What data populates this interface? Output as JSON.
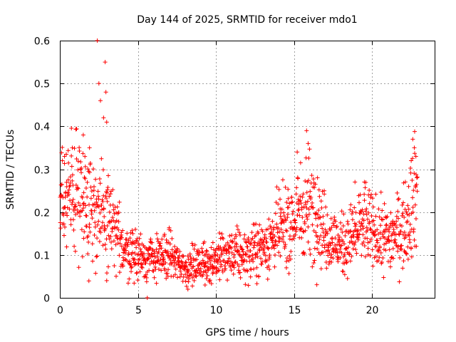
{
  "chart_data": {
    "type": "scatter",
    "title": "Day 144 of 2025, SRMTID for receiver mdo1",
    "xlabel": "GPS time / hours",
    "ylabel": "SRMTID / TECUs",
    "xlim": [
      0,
      24
    ],
    "ylim": [
      0,
      0.6
    ],
    "grid": true,
    "marker": "plus",
    "color": "#ff0000",
    "x_ticks": [
      0,
      5,
      10,
      15,
      20
    ],
    "x_tick_labels": [
      "0",
      "5",
      "10",
      "15",
      "20"
    ],
    "y_ticks": [
      0,
      0.1,
      0.2,
      0.3,
      0.4,
      0.5,
      0.6
    ],
    "y_tick_labels": [
      "0",
      "0.1",
      "0.2",
      "0.3",
      "0.4",
      "0.5",
      "0.6"
    ],
    "trend": [
      {
        "x": 0.0,
        "y": 0.21
      },
      {
        "x": 0.5,
        "y": 0.24
      },
      {
        "x": 1.0,
        "y": 0.25
      },
      {
        "x": 1.5,
        "y": 0.25
      },
      {
        "x": 2.0,
        "y": 0.22
      },
      {
        "x": 2.5,
        "y": 0.18
      },
      {
        "x": 3.0,
        "y": 0.2
      },
      {
        "x": 3.5,
        "y": 0.15
      },
      {
        "x": 4.0,
        "y": 0.12
      },
      {
        "x": 5.0,
        "y": 0.1
      },
      {
        "x": 6.0,
        "y": 0.09
      },
      {
        "x": 7.0,
        "y": 0.1
      },
      {
        "x": 8.0,
        "y": 0.07
      },
      {
        "x": 9.0,
        "y": 0.08
      },
      {
        "x": 10.0,
        "y": 0.09
      },
      {
        "x": 11.0,
        "y": 0.1
      },
      {
        "x": 12.0,
        "y": 0.1
      },
      {
        "x": 13.0,
        "y": 0.12
      },
      {
        "x": 14.0,
        "y": 0.15
      },
      {
        "x": 15.0,
        "y": 0.18
      },
      {
        "x": 15.8,
        "y": 0.22
      },
      {
        "x": 16.5,
        "y": 0.2
      },
      {
        "x": 17.0,
        "y": 0.15
      },
      {
        "x": 18.0,
        "y": 0.12
      },
      {
        "x": 19.0,
        "y": 0.15
      },
      {
        "x": 19.5,
        "y": 0.18
      },
      {
        "x": 20.0,
        "y": 0.15
      },
      {
        "x": 21.0,
        "y": 0.14
      },
      {
        "x": 22.0,
        "y": 0.16
      },
      {
        "x": 22.5,
        "y": 0.22
      },
      {
        "x": 22.9,
        "y": 0.25
      }
    ],
    "peaks": [
      {
        "x": 2.4,
        "y": 0.6
      },
      {
        "x": 2.5,
        "y": 0.5
      },
      {
        "x": 2.6,
        "y": 0.46
      },
      {
        "x": 2.9,
        "y": 0.55
      },
      {
        "x": 2.95,
        "y": 0.48
      },
      {
        "x": 2.8,
        "y": 0.42
      },
      {
        "x": 3.0,
        "y": 0.41
      },
      {
        "x": 1.5,
        "y": 0.38
      },
      {
        "x": 1.9,
        "y": 0.35
      },
      {
        "x": 0.3,
        "y": 0.33
      },
      {
        "x": 0.8,
        "y": 0.35
      },
      {
        "x": 15.8,
        "y": 0.39
      },
      {
        "x": 15.9,
        "y": 0.36
      },
      {
        "x": 15.2,
        "y": 0.34
      },
      {
        "x": 22.6,
        "y": 0.37
      },
      {
        "x": 22.7,
        "y": 0.35
      },
      {
        "x": 22.8,
        "y": 0.33
      },
      {
        "x": 22.5,
        "y": 0.32
      },
      {
        "x": 19.5,
        "y": 0.27
      },
      {
        "x": 18.9,
        "y": 0.27
      },
      {
        "x": 16.5,
        "y": 0.28
      },
      {
        "x": 14.1,
        "y": 0.23
      }
    ],
    "lows": [
      {
        "x": 5.6,
        "y": 0.0
      },
      {
        "x": 3.0,
        "y": 0.04
      },
      {
        "x": 8.2,
        "y": 0.02
      },
      {
        "x": 9.3,
        "y": 0.03
      },
      {
        "x": 8.6,
        "y": 0.04
      }
    ]
  }
}
